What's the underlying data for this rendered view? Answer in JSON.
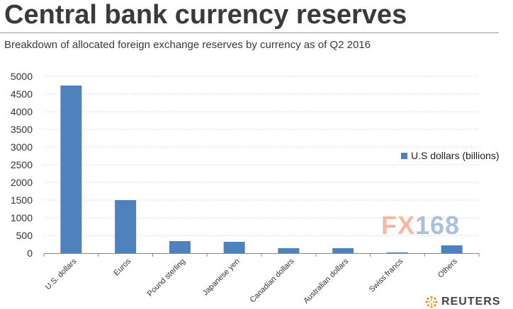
{
  "header": {
    "title": "Central bank currency reserves",
    "subtitle": "Breakdown of allocated foreign exchange reserves by currency as of Q2 2016"
  },
  "watermark": {
    "left": "FX",
    "right": "168"
  },
  "source": {
    "text": "REUTERS",
    "icon": "reuters-dots-icon"
  },
  "colors": {
    "bar": "#4f81bd",
    "grid": "#c8c8c8",
    "watermark_fx": "#f4b9a0",
    "watermark_num": "#a9c1dc"
  },
  "chart_data": {
    "type": "bar",
    "categories": [
      "U.S. dollars",
      "Euros",
      "Pound sterling",
      "Japanese yen",
      "Canadian dollars",
      "Australian dollars",
      "Swiss francs",
      "Others"
    ],
    "series": [
      {
        "name": "U.S dollars (billions)",
        "values": [
          4740,
          1500,
          340,
          320,
          140,
          140,
          20,
          220
        ]
      }
    ],
    "yticks": [
      0,
      500,
      1000,
      1500,
      2000,
      2500,
      3000,
      3500,
      4000,
      4500,
      5000
    ],
    "ylim": [
      0,
      5000
    ],
    "grid": true,
    "gridStyle": "dotted",
    "legend": "right"
  }
}
